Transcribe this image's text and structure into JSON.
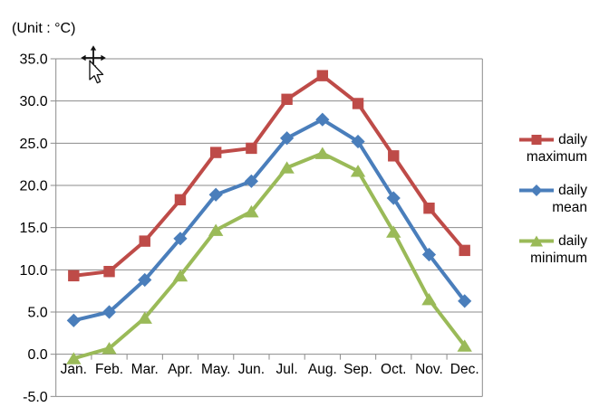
{
  "unit_label": "(Unit : °C)",
  "legend": {
    "items": [
      {
        "label_line1": "daily",
        "label_line2": "maximum",
        "marker": "square",
        "color": "#BE4B48"
      },
      {
        "label_line1": "daily",
        "label_line2": "mean",
        "marker": "diamond",
        "color": "#4A7EBB"
      },
      {
        "label_line1": "daily",
        "label_line2": "minimum",
        "marker": "triangle",
        "color": "#9ABA58"
      }
    ]
  },
  "chart_data": {
    "type": "line",
    "title": "",
    "xlabel": "",
    "ylabel": "(Unit : °C)",
    "categories": [
      "Jan.",
      "Feb.",
      "Mar.",
      "Apr.",
      "May.",
      "Jun.",
      "Jul.",
      "Aug.",
      "Sep.",
      "Oct.",
      "Nov.",
      "Dec."
    ],
    "series": [
      {
        "name": "daily maximum",
        "marker": "square",
        "color": "#BE4B48",
        "values": [
          9.3,
          9.8,
          13.4,
          18.3,
          23.9,
          24.4,
          30.2,
          33.0,
          29.7,
          23.5,
          17.3,
          12.3
        ]
      },
      {
        "name": "daily mean",
        "marker": "diamond",
        "color": "#4A7EBB",
        "values": [
          4.0,
          5.0,
          8.8,
          13.7,
          18.9,
          20.5,
          25.6,
          27.8,
          25.2,
          18.5,
          11.8,
          6.3
        ]
      },
      {
        "name": "daily minimum",
        "marker": "triangle",
        "color": "#9ABA58",
        "values": [
          -0.5,
          0.7,
          4.3,
          9.3,
          14.7,
          16.9,
          22.1,
          23.8,
          21.7,
          14.5,
          6.5,
          1.0
        ]
      }
    ],
    "ylim": [
      -5,
      35
    ],
    "ytick_step": 5,
    "yticks": [
      35,
      30,
      25,
      20,
      15,
      10,
      5,
      0,
      -5
    ],
    "grid": true,
    "legend_position": "right",
    "gridline_color": "#8B8B8B",
    "text_color": "#000000"
  },
  "cursor": {
    "type": "move-cursor-with-pointer"
  }
}
